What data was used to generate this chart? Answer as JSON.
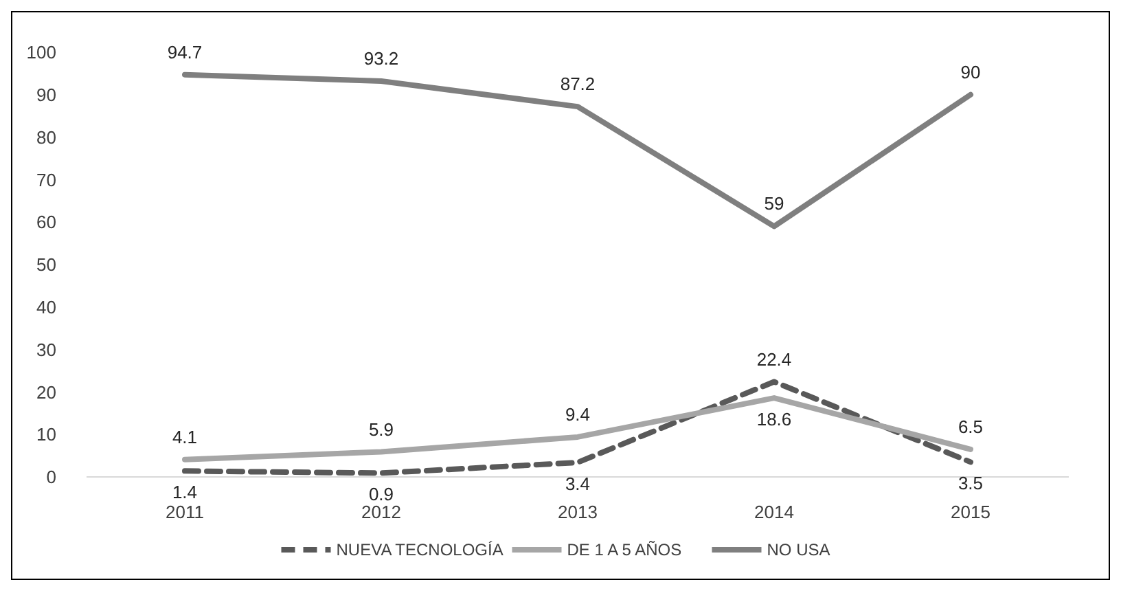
{
  "chart_data": {
    "type": "line",
    "categories": [
      "2011",
      "2012",
      "2013",
      "2014",
      "2015"
    ],
    "series": [
      {
        "name": "NUEVA TECNOLOGÍA",
        "color": "#595959",
        "line_style": "dashed",
        "values": [
          1.4,
          0.9,
          3.4,
          22.4,
          3.5
        ]
      },
      {
        "name": "DE 1 A 5 AÑOS",
        "color": "#a6a6a6",
        "line_style": "solid",
        "values": [
          4.1,
          5.9,
          9.4,
          18.6,
          6.5
        ]
      },
      {
        "name": "NO USA",
        "color": "#7f7f7f",
        "line_style": "solid",
        "values": [
          94.7,
          93.2,
          87.2,
          59,
          90
        ]
      }
    ],
    "ylim": [
      0,
      100
    ],
    "yticks": [
      0,
      10,
      20,
      30,
      40,
      50,
      60,
      70,
      80,
      90,
      100
    ],
    "grid": false,
    "legend": "bottom",
    "data_labels": true,
    "marker": "none"
  }
}
